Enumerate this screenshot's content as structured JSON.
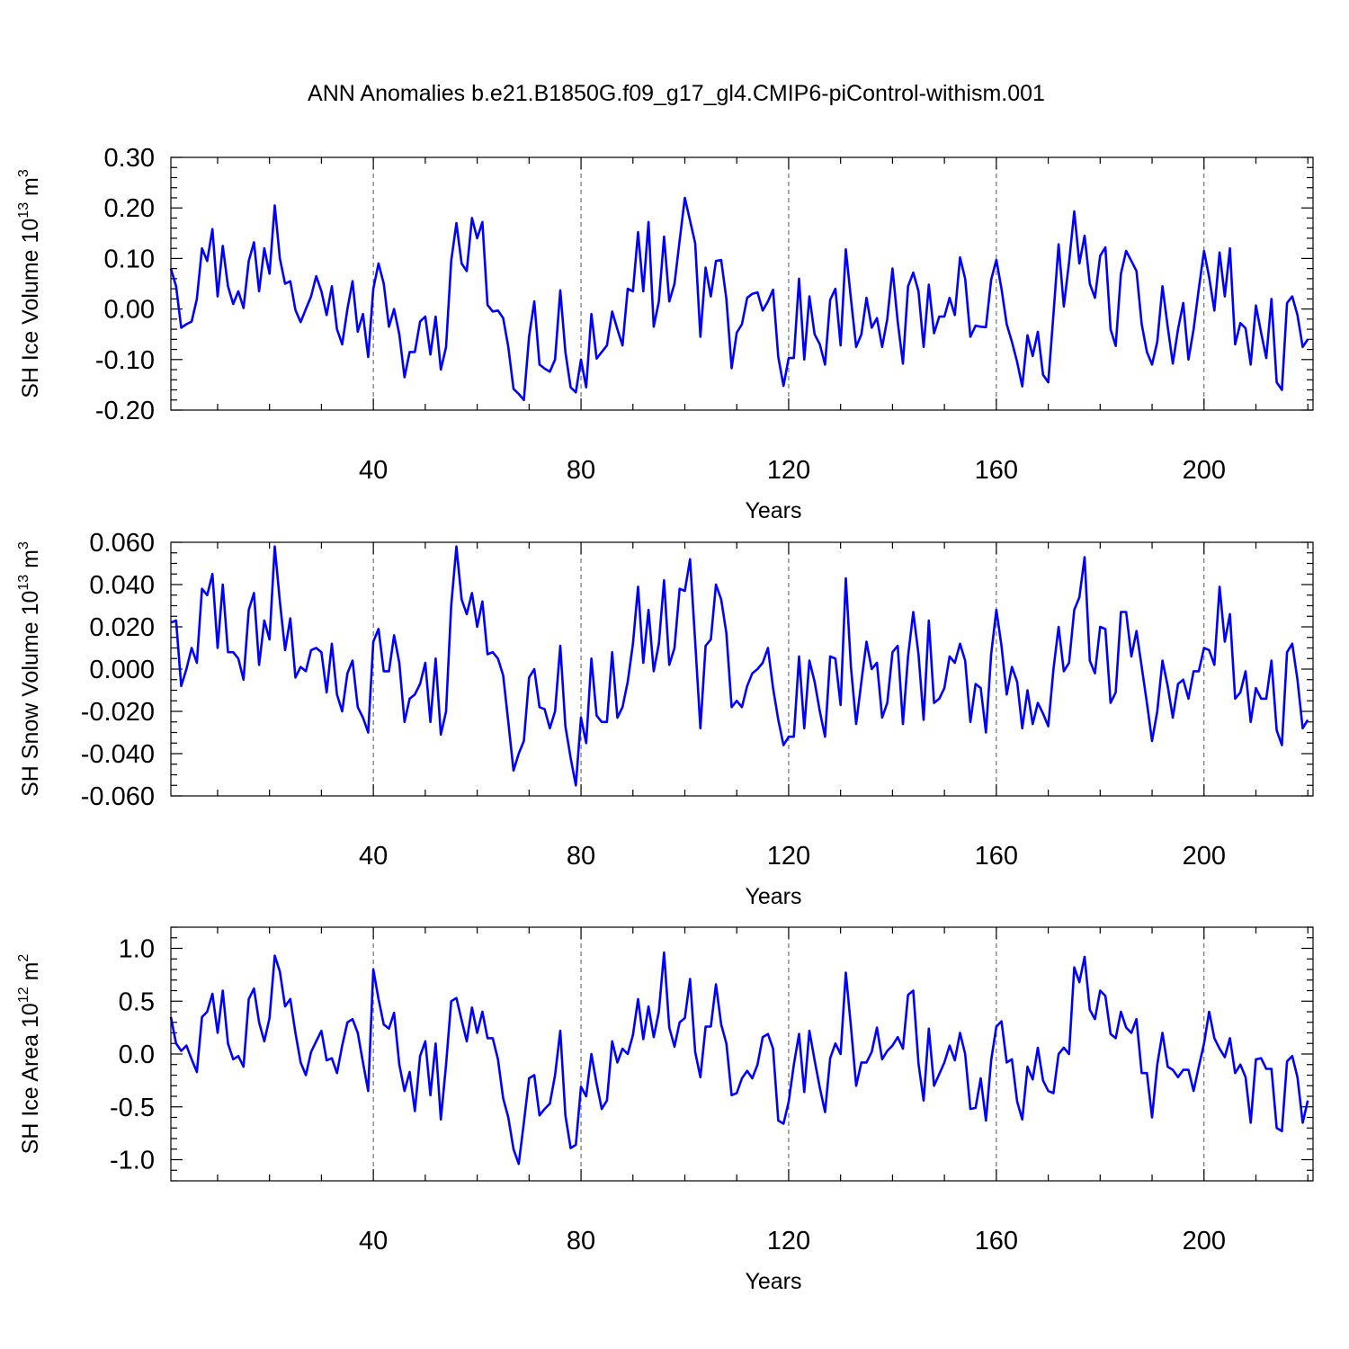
{
  "title": "ANN Anomalies b.e21.B1850G.f09_g17_gl4.CMIP6-piControl-withism.001",
  "colors": {
    "series": "#0000ff",
    "axis": "#000000",
    "grid": "#555555"
  },
  "chart_data": [
    {
      "type": "line",
      "title": "",
      "xlabel": "Years",
      "ylabel": {
        "prefix": "SH Ice Volume 10",
        "exponent": "13",
        "unit": " m",
        "unit_exponent": "3"
      },
      "xlim": [
        1,
        221
      ],
      "ylim": [
        -0.2,
        0.3
      ],
      "xticks": [
        40,
        80,
        120,
        160,
        200
      ],
      "xtick_labels": [
        "40",
        "80",
        "120",
        "160",
        "200"
      ],
      "yticks": [
        -0.2,
        -0.1,
        0.0,
        0.1,
        0.2,
        0.3
      ],
      "ytick_labels": [
        "-0.20",
        "-0.10",
        "0.00",
        "0.10",
        "0.20",
        "0.30"
      ],
      "grid": "vertical dashed lines at major x ticks",
      "series": [
        {
          "x_start": 1,
          "values": [
            0.08,
            0.045,
            -0.037,
            -0.03,
            -0.025,
            0.02,
            0.12,
            0.095,
            0.158,
            0.025,
            0.125,
            0.045,
            0.01,
            0.035,
            0.002,
            0.095,
            0.132,
            0.035,
            0.12,
            0.07,
            0.205,
            0.1,
            0.05,
            0.055,
            -0.002,
            -0.026,
            0.0,
            0.025,
            0.065,
            0.035,
            -0.012,
            0.045,
            -0.04,
            -0.07,
            0.0,
            0.055,
            -0.045,
            -0.01,
            -0.095,
            0.04,
            0.09,
            0.05,
            -0.035,
            0.0,
            -0.05,
            -0.135,
            -0.085,
            -0.085,
            -0.025,
            -0.015,
            -0.09,
            -0.015,
            -0.12,
            -0.075,
            0.095,
            0.17,
            0.09,
            0.075,
            0.18,
            0.14,
            0.172,
            0.008,
            -0.005,
            -0.003,
            -0.018,
            -0.075,
            -0.158,
            -0.168,
            -0.18,
            -0.055,
            0.015,
            -0.11,
            -0.118,
            -0.124,
            -0.1,
            0.037,
            -0.085,
            -0.155,
            -0.165,
            -0.1,
            -0.155,
            -0.01,
            -0.098,
            -0.085,
            -0.072,
            -0.005,
            -0.04,
            -0.072,
            0.04,
            0.035,
            0.152,
            0.035,
            0.172,
            -0.035,
            0.015,
            0.143,
            0.015,
            0.05,
            0.135,
            0.22,
            0.175,
            0.13,
            -0.055,
            0.082,
            0.025,
            0.095,
            0.097,
            0.02,
            -0.117,
            -0.047,
            -0.03,
            0.022,
            0.03,
            0.033,
            -0.003,
            0.015,
            0.038,
            -0.095,
            -0.152,
            -0.097,
            -0.097,
            0.06,
            -0.1,
            0.025,
            -0.05,
            -0.07,
            -0.11,
            0.018,
            0.04,
            -0.072,
            0.118,
            0.02,
            -0.075,
            -0.05,
            0.022,
            -0.037,
            -0.018,
            -0.075,
            -0.02,
            0.08,
            -0.025,
            -0.108,
            0.045,
            0.072,
            0.035,
            -0.075,
            0.048,
            -0.048,
            -0.015,
            -0.015,
            0.022,
            -0.012,
            0.102,
            0.06,
            -0.055,
            -0.033,
            -0.035,
            -0.036,
            0.058,
            0.097,
            0.04,
            -0.03,
            -0.065,
            -0.105,
            -0.153,
            -0.052,
            -0.093,
            -0.045,
            -0.13,
            -0.145,
            -0.01,
            0.128,
            0.005,
            0.092,
            0.193,
            0.09,
            0.145,
            0.05,
            0.022,
            0.105,
            0.122,
            -0.04,
            -0.073,
            0.07,
            0.115,
            0.095,
            0.075,
            -0.03,
            -0.085,
            -0.11,
            -0.065,
            0.045,
            -0.035,
            -0.108,
            -0.04,
            0.012,
            -0.1,
            -0.04,
            0.04,
            0.115,
            0.063,
            -0.003,
            0.112,
            0.025,
            0.12,
            -0.07,
            -0.028,
            -0.038,
            -0.11,
            0.007,
            -0.047,
            -0.097,
            0.02,
            -0.145,
            -0.16,
            0.012,
            0.025,
            -0.012,
            -0.075,
            -0.06
          ]
        }
      ]
    },
    {
      "type": "line",
      "title": "",
      "xlabel": "Years",
      "ylabel": {
        "prefix": "SH Snow Volume 10",
        "exponent": "13",
        "unit": " m",
        "unit_exponent": "3"
      },
      "xlim": [
        1,
        221
      ],
      "ylim": [
        -0.06,
        0.06
      ],
      "xticks": [
        40,
        80,
        120,
        160,
        200
      ],
      "xtick_labels": [
        "40",
        "80",
        "120",
        "160",
        "200"
      ],
      "yticks": [
        -0.06,
        -0.04,
        -0.02,
        0.0,
        0.02,
        0.04,
        0.06
      ],
      "ytick_labels": [
        "-0.060",
        "-0.040",
        "-0.020",
        "0.000",
        "0.020",
        "0.040",
        "0.060"
      ],
      "grid": "vertical dashed lines at major x ticks",
      "series": [
        {
          "x_start": 1,
          "values": [
            0.022,
            0.023,
            -0.008,
            0.0,
            0.01,
            0.003,
            0.038,
            0.035,
            0.045,
            0.01,
            0.04,
            0.008,
            0.008,
            0.005,
            -0.005,
            0.028,
            0.036,
            0.002,
            0.023,
            0.014,
            0.058,
            0.032,
            0.009,
            0.024,
            -0.004,
            0.001,
            -0.001,
            0.009,
            0.01,
            0.008,
            -0.011,
            0.012,
            -0.012,
            -0.02,
            -0.002,
            0.004,
            -0.018,
            -0.023,
            -0.03,
            0.013,
            0.019,
            -0.001,
            -0.001,
            0.016,
            0.003,
            -0.025,
            -0.014,
            -0.012,
            -0.007,
            0.003,
            -0.025,
            0.005,
            -0.031,
            -0.02,
            0.03,
            0.058,
            0.033,
            0.026,
            0.036,
            0.02,
            0.032,
            0.007,
            0.008,
            0.005,
            -0.003,
            -0.025,
            -0.048,
            -0.04,
            -0.034,
            -0.004,
            0.0,
            -0.018,
            -0.019,
            -0.028,
            -0.02,
            0.011,
            -0.027,
            -0.042,
            -0.055,
            -0.023,
            -0.035,
            0.005,
            -0.022,
            -0.025,
            -0.025,
            0.008,
            -0.023,
            -0.018,
            -0.006,
            0.012,
            0.039,
            0.003,
            0.028,
            -0.001,
            0.012,
            0.042,
            0.002,
            0.01,
            0.038,
            0.037,
            0.052,
            0.013,
            -0.028,
            0.011,
            0.014,
            0.04,
            0.033,
            0.017,
            -0.018,
            -0.015,
            -0.018,
            -0.008,
            -0.002,
            0.0,
            0.003,
            0.01,
            -0.009,
            -0.024,
            -0.036,
            -0.032,
            -0.032,
            0.006,
            -0.028,
            0.004,
            -0.006,
            -0.02,
            -0.032,
            0.006,
            0.005,
            -0.017,
            0.043,
            0.001,
            -0.026,
            -0.006,
            0.013,
            0.0,
            0.003,
            -0.023,
            -0.016,
            0.008,
            0.011,
            -0.026,
            0.006,
            0.027,
            0.007,
            -0.024,
            0.023,
            -0.016,
            -0.014,
            -0.009,
            0.006,
            0.003,
            0.012,
            0.004,
            -0.025,
            -0.007,
            -0.009,
            -0.03,
            0.007,
            0.028,
            0.011,
            -0.012,
            0.001,
            -0.006,
            -0.028,
            -0.01,
            -0.026,
            -0.016,
            -0.021,
            -0.027,
            0.0,
            0.02,
            -0.001,
            0.003,
            0.028,
            0.034,
            0.053,
            0.004,
            -0.002,
            0.02,
            0.019,
            -0.016,
            -0.011,
            0.027,
            0.027,
            0.006,
            0.018,
            0.001,
            -0.016,
            -0.034,
            -0.02,
            0.004,
            -0.008,
            -0.023,
            -0.007,
            -0.005,
            -0.014,
            -0.001,
            -0.001,
            0.01,
            0.009,
            0.002,
            0.039,
            0.013,
            0.026,
            -0.014,
            -0.011,
            -0.001,
            -0.025,
            -0.009,
            -0.014,
            -0.014,
            0.004,
            -0.029,
            -0.036,
            0.008,
            0.012,
            -0.005,
            -0.028,
            -0.024
          ]
        }
      ]
    },
    {
      "type": "line",
      "title": "",
      "xlabel": "Years",
      "ylabel": {
        "prefix": "SH Ice Area 10",
        "exponent": "12",
        "unit": " m",
        "unit_exponent": "2"
      },
      "xlim": [
        1,
        221
      ],
      "ylim": [
        -1.2,
        1.2
      ],
      "xticks": [
        40,
        80,
        120,
        160,
        200
      ],
      "xtick_labels": [
        "40",
        "80",
        "120",
        "160",
        "200"
      ],
      "yticks": [
        -1.0,
        -0.5,
        0.0,
        0.5,
        1.0
      ],
      "ytick_labels": [
        "-1.0",
        "-0.5",
        "0.0",
        "0.5",
        "1.0"
      ],
      "grid": "vertical dashed lines at major x ticks",
      "series": [
        {
          "x_start": 1,
          "values": [
            0.35,
            0.1,
            0.03,
            0.08,
            -0.05,
            -0.17,
            0.35,
            0.4,
            0.57,
            0.2,
            0.6,
            0.1,
            -0.05,
            -0.02,
            -0.12,
            0.52,
            0.62,
            0.3,
            0.12,
            0.34,
            0.93,
            0.78,
            0.45,
            0.52,
            0.2,
            -0.08,
            -0.2,
            0.02,
            0.12,
            0.22,
            -0.06,
            -0.04,
            -0.18,
            0.08,
            0.3,
            0.33,
            0.2,
            -0.08,
            -0.35,
            0.8,
            0.52,
            0.28,
            0.24,
            0.39,
            -0.1,
            -0.35,
            -0.17,
            -0.54,
            -0.02,
            0.12,
            -0.39,
            0.1,
            -0.62,
            -0.1,
            0.5,
            0.53,
            0.32,
            0.12,
            0.44,
            0.2,
            0.4,
            0.15,
            0.15,
            -0.05,
            -0.42,
            -0.6,
            -0.9,
            -1.04,
            -0.65,
            -0.23,
            -0.2,
            -0.58,
            -0.52,
            -0.47,
            -0.2,
            0.22,
            -0.58,
            -0.89,
            -0.86,
            -0.31,
            -0.4,
            0.0,
            -0.28,
            -0.52,
            -0.44,
            0.12,
            -0.08,
            0.05,
            0.0,
            0.18,
            0.52,
            0.14,
            0.45,
            0.16,
            0.4,
            0.96,
            0.25,
            0.07,
            0.3,
            0.34,
            0.71,
            0.02,
            -0.22,
            0.26,
            0.26,
            0.66,
            0.28,
            0.1,
            -0.39,
            -0.37,
            -0.23,
            -0.16,
            -0.23,
            -0.1,
            0.16,
            0.19,
            0.05,
            -0.63,
            -0.66,
            -0.45,
            -0.1,
            0.19,
            -0.36,
            0.22,
            -0.06,
            -0.32,
            -0.55,
            -0.04,
            0.1,
            0.0,
            0.77,
            0.26,
            -0.3,
            -0.08,
            -0.08,
            0.02,
            0.25,
            -0.05,
            0.03,
            0.08,
            0.16,
            0.05,
            0.56,
            0.6,
            -0.09,
            -0.44,
            0.24,
            -0.3,
            -0.19,
            -0.08,
            0.08,
            -0.06,
            0.2,
            0.0,
            -0.52,
            -0.51,
            -0.23,
            -0.63,
            -0.06,
            0.26,
            0.31,
            -0.08,
            -0.05,
            -0.45,
            -0.62,
            -0.12,
            -0.24,
            0.06,
            -0.25,
            -0.35,
            -0.37,
            0.0,
            0.06,
            0.0,
            0.82,
            0.68,
            0.92,
            0.42,
            0.33,
            0.6,
            0.55,
            0.19,
            0.15,
            0.4,
            0.25,
            0.2,
            0.33,
            -0.18,
            -0.18,
            -0.6,
            -0.1,
            0.2,
            -0.12,
            -0.15,
            -0.22,
            -0.15,
            -0.15,
            -0.35,
            -0.12,
            0.1,
            0.4,
            0.15,
            0.05,
            -0.03,
            0.15,
            -0.18,
            -0.1,
            -0.22,
            -0.65,
            -0.05,
            -0.04,
            -0.14,
            -0.14,
            -0.7,
            -0.73,
            -0.07,
            -0.02,
            -0.22,
            -0.65,
            -0.44
          ]
        }
      ]
    }
  ]
}
